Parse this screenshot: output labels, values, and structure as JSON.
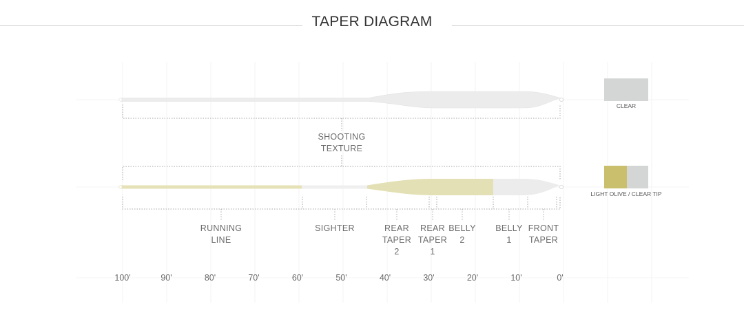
{
  "title": "TAPER DIAGRAM",
  "colors": {
    "clear": "#eeeeee",
    "olive": "#e4e0b5",
    "swatch_clear": "#d4d6d6",
    "swatch_olive": "#c9bf6c",
    "dotted": "#a5a5a5"
  },
  "top_line": {
    "label_lines": [
      "SHOOTING",
      "TEXTURE"
    ]
  },
  "bottom_line": {
    "sections": [
      {
        "id": "running-line",
        "lines": [
          "RUNNING",
          "LINE"
        ]
      },
      {
        "id": "sighter",
        "lines": [
          "SIGHTER"
        ]
      },
      {
        "id": "rear-taper-2",
        "lines": [
          "REAR",
          "TAPER",
          "2"
        ]
      },
      {
        "id": "rear-taper-1",
        "lines": [
          "REAR",
          "TAPER",
          "1"
        ]
      },
      {
        "id": "belly-2",
        "lines": [
          "BELLY",
          "2"
        ]
      },
      {
        "id": "belly-1",
        "lines": [
          "BELLY",
          "1"
        ]
      },
      {
        "id": "front-taper",
        "lines": [
          "FRONT",
          "TAPER"
        ]
      }
    ]
  },
  "axis": {
    "ticks": [
      "100'",
      "90'",
      "80'",
      "70'",
      "60'",
      "50'",
      "40'",
      "30'",
      "20'",
      "10'",
      "0'"
    ]
  },
  "legend": {
    "top": "CLEAR",
    "bottom": "LIGHT OLIVE / CLEAR TIP"
  }
}
